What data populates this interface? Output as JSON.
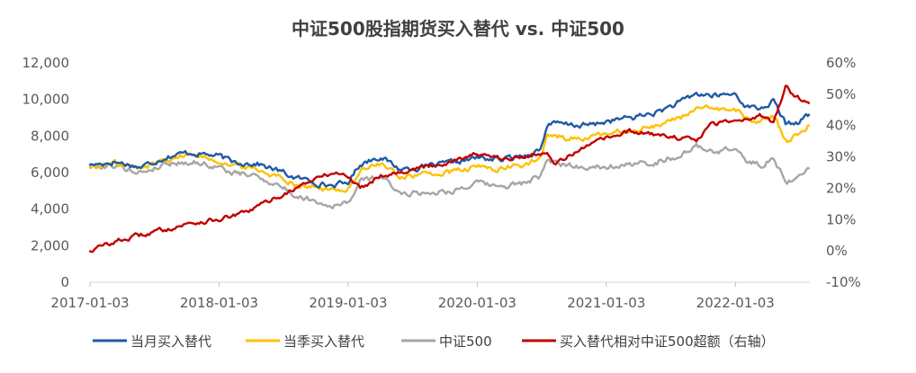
{
  "chart_data": {
    "type": "line",
    "title": "中证500股指期货买入替代 vs. 中证500",
    "x_tick_labels": [
      "2017-01-03",
      "2018-01-03",
      "2019-01-03",
      "2020-01-03",
      "2021-01-03",
      "2022-01-03"
    ],
    "x_range": [
      "2017-01-03",
      "2022-07-31"
    ],
    "y_left": {
      "range": [
        0,
        12000
      ],
      "tick_labels": [
        "0",
        "2,000",
        "4,000",
        "6,000",
        "8,000",
        "10,000",
        "12,000"
      ]
    },
    "y_right": {
      "range": [
        -0.1,
        0.6
      ],
      "tick_labels": [
        "-10%",
        "0%",
        "10%",
        "20%",
        "30%",
        "40%",
        "50%",
        "60%"
      ]
    },
    "grid": false,
    "legend_position": "bottom",
    "series": [
      {
        "name": "当月买入替代",
        "axis": "left",
        "color": "#1F5AA6",
        "x": [
          2017.0,
          2017.2,
          2017.4,
          2017.6,
          2017.8,
          2018.0,
          2018.1,
          2018.3,
          2018.5,
          2018.6,
          2018.75,
          2018.85,
          2019.0,
          2019.1,
          2019.25,
          2019.4,
          2019.6,
          2019.8,
          2020.0,
          2020.2,
          2020.4,
          2020.5,
          2020.55,
          2020.7,
          2020.9,
          2021.0,
          2021.2,
          2021.4,
          2021.6,
          2021.7,
          2021.85,
          2022.0,
          2022.1,
          2022.2,
          2022.3,
          2022.4,
          2022.5,
          2022.58
        ],
        "y": [
          6400,
          6600,
          6300,
          6900,
          7100,
          6900,
          6600,
          6500,
          6000,
          5700,
          5500,
          5300,
          5400,
          6500,
          6900,
          6200,
          6300,
          6500,
          6800,
          6700,
          7000,
          7300,
          8700,
          8600,
          8600,
          8800,
          9000,
          9300,
          9900,
          10300,
          10200,
          10300,
          9600,
          9500,
          9900,
          8600,
          8800,
          9200
        ]
      },
      {
        "name": "当季买入替代",
        "axis": "left",
        "color": "#FFC000",
        "x": [
          2017.0,
          2017.2,
          2017.4,
          2017.6,
          2017.8,
          2018.0,
          2018.1,
          2018.3,
          2018.5,
          2018.6,
          2018.75,
          2018.85,
          2019.0,
          2019.1,
          2019.25,
          2019.4,
          2019.6,
          2019.8,
          2020.0,
          2020.2,
          2020.4,
          2020.5,
          2020.55,
          2020.7,
          2020.9,
          2021.0,
          2021.2,
          2021.4,
          2021.6,
          2021.7,
          2021.85,
          2022.0,
          2022.1,
          2022.2,
          2022.3,
          2022.4,
          2022.5,
          2022.58
        ],
        "y": [
          6300,
          6500,
          6200,
          6800,
          7000,
          6700,
          6400,
          6200,
          5700,
          5400,
          5200,
          5000,
          5100,
          6100,
          6500,
          5800,
          5900,
          6000,
          6300,
          6200,
          6500,
          6800,
          8000,
          7900,
          7900,
          8100,
          8300,
          8600,
          9100,
          9500,
          9400,
          9500,
          8900,
          8800,
          9100,
          7800,
          8100,
          8600
        ]
      },
      {
        "name": "中证500",
        "axis": "left",
        "color": "#A6A6A6",
        "x": [
          2017.0,
          2017.2,
          2017.4,
          2017.6,
          2017.8,
          2018.0,
          2018.1,
          2018.3,
          2018.5,
          2018.6,
          2018.75,
          2018.85,
          2019.0,
          2019.1,
          2019.25,
          2019.4,
          2019.6,
          2019.8,
          2020.0,
          2020.2,
          2020.4,
          2020.5,
          2020.55,
          2020.7,
          2020.9,
          2021.0,
          2021.2,
          2021.4,
          2021.6,
          2021.7,
          2021.85,
          2022.0,
          2022.1,
          2022.2,
          2022.3,
          2022.4,
          2022.5,
          2022.58
        ],
        "y": [
          6300,
          6400,
          6000,
          6500,
          6600,
          6300,
          6000,
          5800,
          5200,
          4700,
          4500,
          4200,
          4300,
          5500,
          5800,
          4900,
          4900,
          5000,
          5400,
          5200,
          5500,
          5800,
          6600,
          6400,
          6300,
          6400,
          6400,
          6600,
          7000,
          7400,
          7200,
          7300,
          6600,
          6400,
          6800,
          5500,
          5800,
          6200
        ]
      },
      {
        "name": "买入替代相对中证500超额（右轴）",
        "axis": "right",
        "color": "#C00000",
        "x": [
          2017.0,
          2017.2,
          2017.4,
          2017.6,
          2017.8,
          2018.0,
          2018.2,
          2018.4,
          2018.6,
          2018.75,
          2018.9,
          2019.0,
          2019.1,
          2019.25,
          2019.5,
          2019.75,
          2019.9,
          2020.0,
          2020.2,
          2020.4,
          2020.55,
          2020.6,
          2020.7,
          2020.85,
          2021.0,
          2021.2,
          2021.4,
          2021.6,
          2021.7,
          2021.8,
          2022.0,
          2022.2,
          2022.3,
          2022.35,
          2022.4,
          2022.45,
          2022.5,
          2022.58
        ],
        "y": [
          0.0,
          0.03,
          0.05,
          0.07,
          0.09,
          0.1,
          0.12,
          0.16,
          0.2,
          0.23,
          0.25,
          0.24,
          0.2,
          0.24,
          0.26,
          0.28,
          0.3,
          0.31,
          0.29,
          0.3,
          0.32,
          0.28,
          0.3,
          0.33,
          0.36,
          0.38,
          0.37,
          0.36,
          0.35,
          0.4,
          0.42,
          0.43,
          0.41,
          0.47,
          0.53,
          0.5,
          0.49,
          0.47
        ]
      }
    ]
  }
}
